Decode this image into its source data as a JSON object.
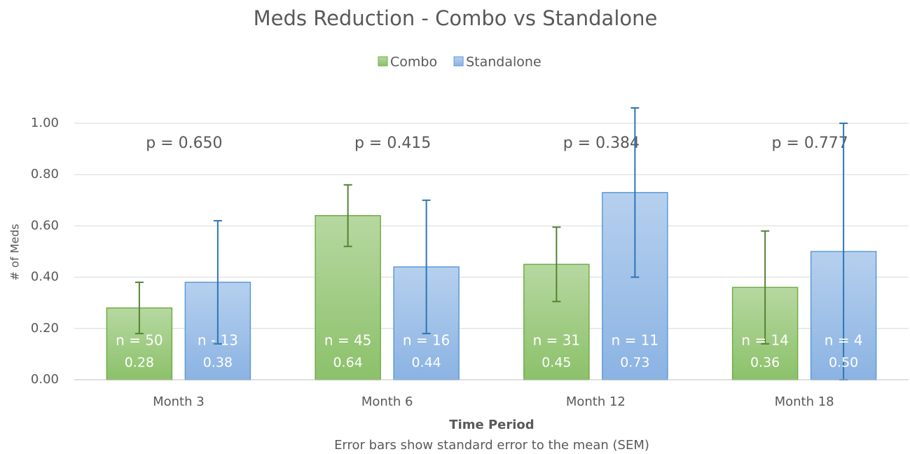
{
  "chart_data": {
    "type": "bar",
    "title": "Meds Reduction - Combo vs Standalone",
    "y_label": "# of Meds",
    "x_label": "Time Period",
    "note": "Error bars show standard error to the mean (SEM)",
    "categories": [
      "Month 3",
      "Month 6",
      "Month 12",
      "Month 18"
    ],
    "annotations": [
      "p = 0.650",
      "p = 0.415",
      "p = 0.384",
      "p = 0.777"
    ],
    "series": [
      {
        "name": "Combo",
        "color": "#70ad47",
        "error_color": "#548235",
        "values": [
          0.28,
          0.64,
          0.45,
          0.36
        ],
        "value_labels": [
          "0.28",
          "0.64",
          "0.45",
          "0.36"
        ],
        "errors": [
          0.1,
          0.12,
          0.145,
          0.22
        ],
        "n_labels": [
          "n = 50",
          "n = 45",
          "n = 31",
          "n = 14"
        ]
      },
      {
        "name": "Standalone",
        "color": "#5b9bd5",
        "error_color": "#2e75b6",
        "values": [
          0.38,
          0.44,
          0.73,
          0.5
        ],
        "value_labels": [
          "0.38",
          "0.44",
          "0.73",
          "0.50"
        ],
        "errors": [
          0.24,
          0.26,
          0.33,
          0.5
        ],
        "n_labels": [
          "n - 13",
          "n = 16",
          "n = 11",
          "n = 4"
        ]
      }
    ],
    "ylim": [
      0,
      1.0
    ],
    "yticks": [
      {
        "value": 0,
        "label": "0.00"
      },
      {
        "value": 0.2,
        "label": "0.20"
      },
      {
        "value": 0.4,
        "label": "0.40"
      },
      {
        "value": 0.6,
        "label": "0.60"
      },
      {
        "value": 0.8,
        "label": "0.80"
      },
      {
        "value": 1.0,
        "label": "1.00"
      }
    ],
    "grid": true,
    "legend": "top"
  }
}
